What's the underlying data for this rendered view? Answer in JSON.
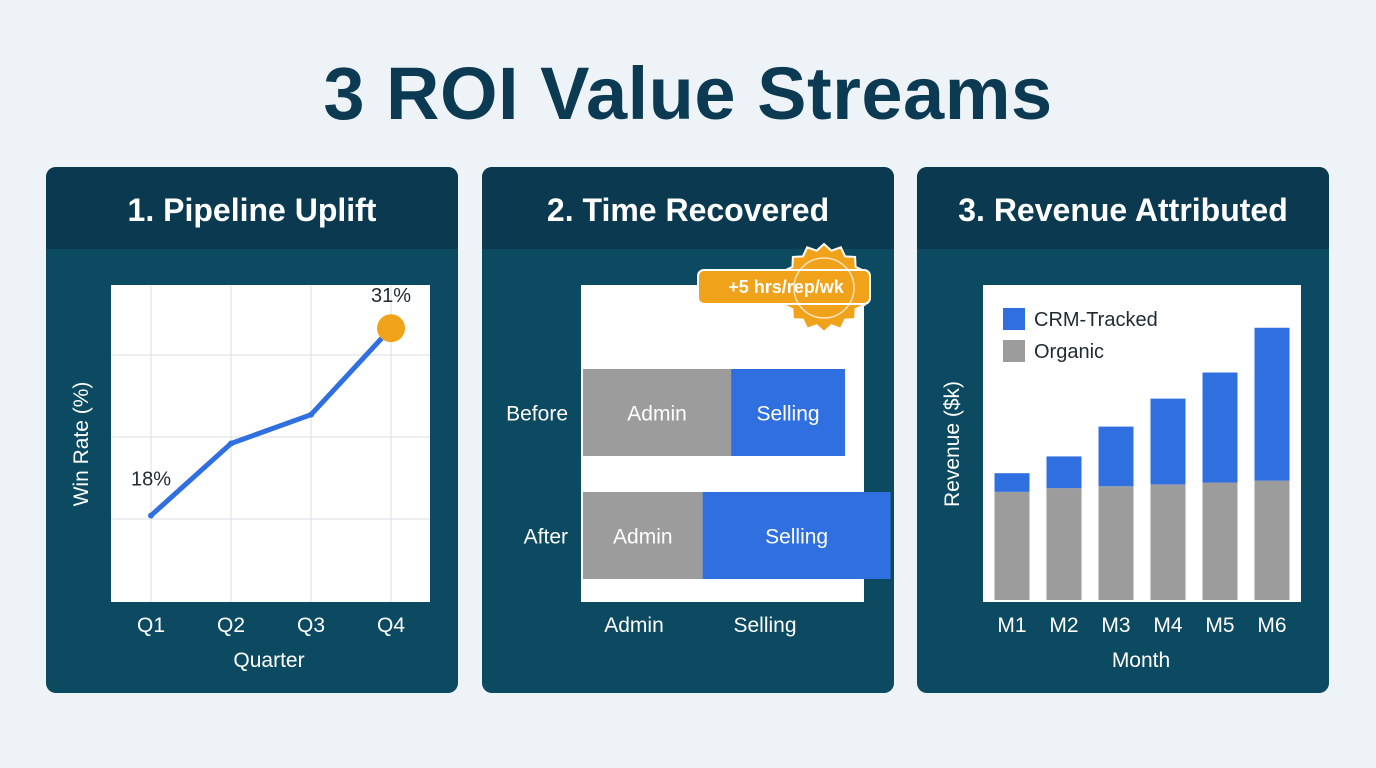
{
  "page": {
    "title": "3 ROI Value Streams"
  },
  "colors": {
    "background": "#eef3f8",
    "panel": "#0b4a60",
    "panel_header": "#0b3a50",
    "title": "#0b3a52",
    "blue": "#2f6fe0",
    "gray": "#9c9c9c",
    "orange": "#f0a21a"
  },
  "chart_data": [
    {
      "type": "line",
      "title": "1. Pipeline Uplift",
      "xlabel": "Quarter",
      "ylabel": "Win Rate (%)",
      "categories": [
        "Q1",
        "Q2",
        "Q3",
        "Q4"
      ],
      "values": [
        18,
        23,
        25,
        31
      ],
      "data_labels": [
        "18%",
        "",
        "",
        "31%"
      ],
      "highlight_last_point": true,
      "ylim": [
        12,
        34
      ],
      "grid": true
    },
    {
      "type": "bar",
      "orientation": "horizontal",
      "stacked": true,
      "title": "2. Time Recovered",
      "categories": [
        "Before",
        "After"
      ],
      "series": [
        {
          "name": "Admin",
          "values": [
            26,
            21
          ],
          "label": "Admin"
        },
        {
          "name": "Selling",
          "values": [
            20,
            33
          ],
          "label": "Selling"
        }
      ],
      "legend_labels": [
        "Admin",
        "Selling"
      ],
      "xlim": [
        0,
        58
      ],
      "badge": "+5 hrs/rep/wk"
    },
    {
      "type": "bar",
      "stacked": true,
      "title": "3. Revenue Attributed",
      "xlabel": "Month",
      "ylabel": "Revenue ($k)",
      "categories": [
        "M1",
        "M2",
        "M3",
        "M4",
        "M5",
        "M6"
      ],
      "series": [
        {
          "name": "Organic",
          "values": [
            58,
            60,
            61,
            62,
            63,
            64
          ]
        },
        {
          "name": "CRM-Tracked",
          "values": [
            10,
            17,
            32,
            46,
            59,
            82
          ]
        }
      ],
      "legend": [
        "CRM-Tracked",
        "Organic"
      ],
      "legend_position": "top-left",
      "ylim": [
        0,
        170
      ]
    }
  ]
}
